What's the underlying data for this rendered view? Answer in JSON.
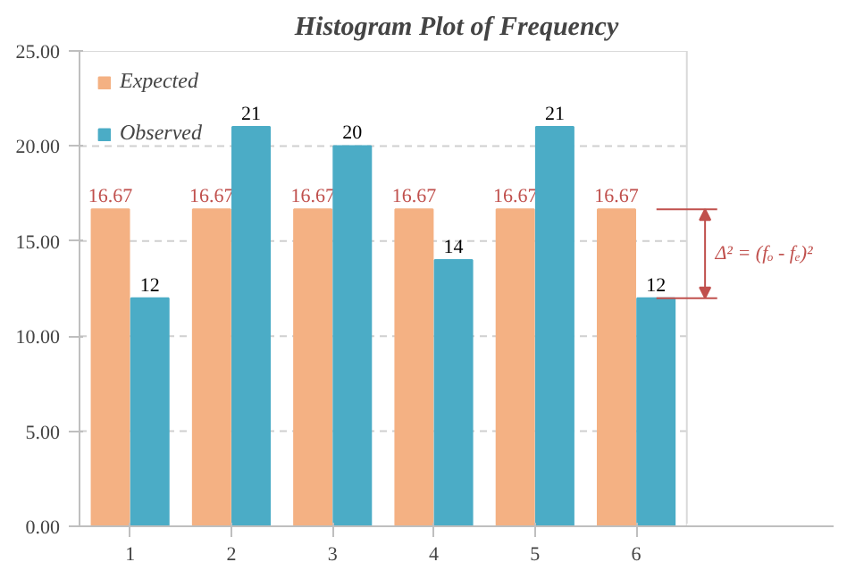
{
  "chart_data": {
    "type": "bar",
    "title": "Histogram Plot of Frequency",
    "categories": [
      "1",
      "2",
      "3",
      "4",
      "5",
      "6"
    ],
    "series": [
      {
        "name": "Expected",
        "color": "#f4b183",
        "values": [
          16.67,
          16.67,
          16.67,
          16.67,
          16.67,
          16.67
        ]
      },
      {
        "name": "Observed",
        "color": "#4bacc6",
        "values": [
          12,
          21,
          20,
          14,
          21,
          12
        ]
      }
    ],
    "ylim": [
      0,
      25
    ],
    "yticks": [
      {
        "value": 0,
        "label": "0.00"
      },
      {
        "value": 5,
        "label": "5.00"
      },
      {
        "value": 10,
        "label": "10.00"
      },
      {
        "value": 15,
        "label": "15.00"
      },
      {
        "value": 20,
        "label": "20.00"
      },
      {
        "value": 25,
        "label": "25.00"
      }
    ],
    "grid": "y",
    "legend": "top left",
    "data_labels": true,
    "annotations": [
      "Δ² = (fₒ - fₑ)²"
    ]
  }
}
